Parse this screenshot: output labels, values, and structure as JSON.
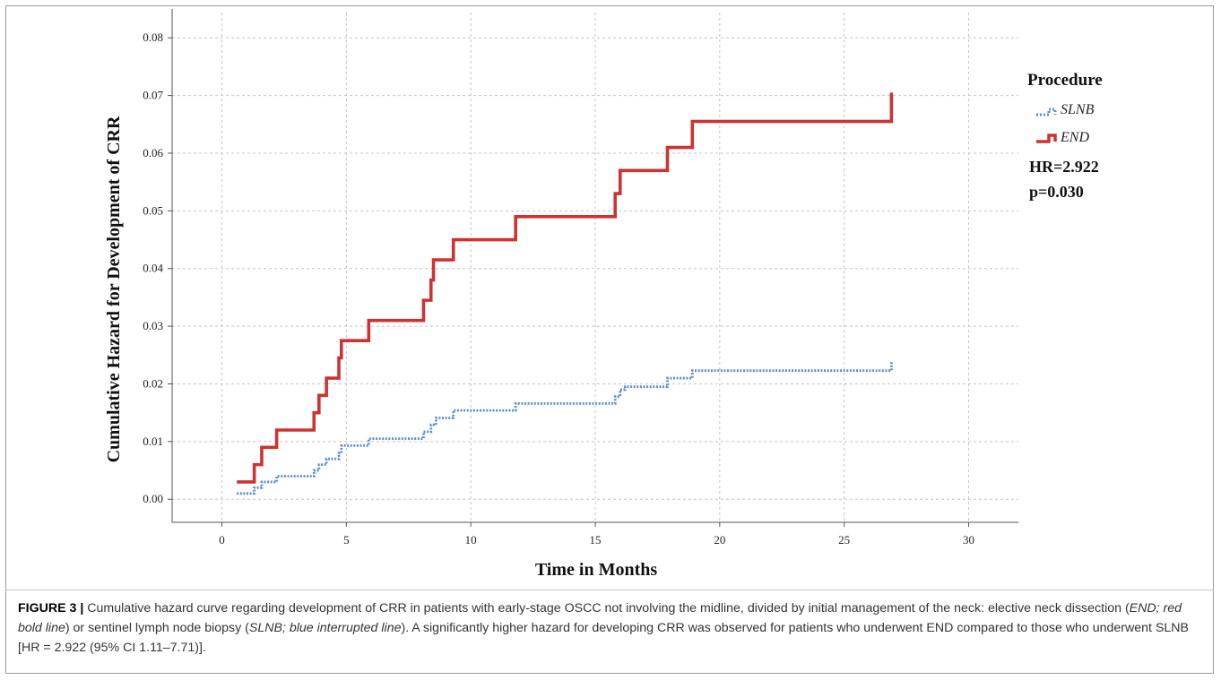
{
  "chart_data": {
    "type": "line",
    "xlabel": "Time in Months",
    "ylabel": "Cumulative Hazard for Development of CRR",
    "xlim": [
      -2,
      32
    ],
    "ylim": [
      -0.004,
      0.085
    ],
    "x_ticks": [
      0,
      5,
      10,
      15,
      20,
      25,
      30
    ],
    "y_ticks": [
      0.0,
      0.01,
      0.02,
      0.03,
      0.04,
      0.05,
      0.06,
      0.07,
      0.08
    ],
    "y_tick_labels": [
      "0.00",
      "0.01",
      "0.02",
      "0.03",
      "0.04",
      "0.05",
      "0.06",
      "0.07",
      "0.08"
    ],
    "grid": true,
    "legend_title": "Procedure",
    "legend_position": "top-right",
    "series": [
      {
        "name": "SLNB",
        "color": "#5b8fc9",
        "style": "dotted",
        "steps": [
          [
            0.6,
            0.001
          ],
          [
            1.3,
            0.002
          ],
          [
            1.6,
            0.003
          ],
          [
            2.2,
            0.004
          ],
          [
            3.7,
            0.005
          ],
          [
            3.9,
            0.006
          ],
          [
            4.2,
            0.007
          ],
          [
            4.7,
            0.008
          ],
          [
            4.8,
            0.0093
          ],
          [
            5.9,
            0.0105
          ],
          [
            8.1,
            0.0117
          ],
          [
            8.4,
            0.0129
          ],
          [
            8.6,
            0.0141
          ],
          [
            9.3,
            0.0154
          ],
          [
            11.8,
            0.0166
          ],
          [
            15.8,
            0.0178
          ],
          [
            16.0,
            0.019
          ],
          [
            16.2,
            0.0195
          ],
          [
            17.9,
            0.021
          ],
          [
            18.9,
            0.0223
          ],
          [
            26.9,
            0.0235
          ],
          [
            26.9,
            0.024
          ]
        ]
      },
      {
        "name": "END",
        "color": "#cc3333",
        "style": "solid",
        "steps": [
          [
            0.6,
            0.003
          ],
          [
            1.3,
            0.006
          ],
          [
            1.6,
            0.009
          ],
          [
            2.2,
            0.012
          ],
          [
            3.7,
            0.015
          ],
          [
            3.9,
            0.018
          ],
          [
            4.2,
            0.021
          ],
          [
            4.7,
            0.0245
          ],
          [
            4.8,
            0.0275
          ],
          [
            5.9,
            0.031
          ],
          [
            8.1,
            0.0345
          ],
          [
            8.4,
            0.038
          ],
          [
            8.5,
            0.0415
          ],
          [
            9.3,
            0.045
          ],
          [
            11.8,
            0.049
          ],
          [
            15.8,
            0.053
          ],
          [
            16.0,
            0.057
          ],
          [
            17.9,
            0.061
          ],
          [
            18.9,
            0.0655
          ],
          [
            26.9,
            0.0705
          ]
        ]
      }
    ],
    "annotations": {
      "hr": "HR=2.922",
      "p": "p=0.030"
    }
  },
  "caption": {
    "label": "FIGURE 3 |",
    "text_1": " Cumulative hazard curve regarding development of CRR in patients with early-stage OSCC not involving the midline, divided by initial management of the neck: elective neck dissection (",
    "em_1": "END; red bold line",
    "text_2": ") or sentinel lymph node biopsy (",
    "em_2": "SLNB; blue interrupted line",
    "text_3": "). A significantly higher hazard for developing CRR was observed for patients who underwent END compared to those who underwent SLNB [HR = 2.922 (95% CI 1.11–7.71)]."
  }
}
